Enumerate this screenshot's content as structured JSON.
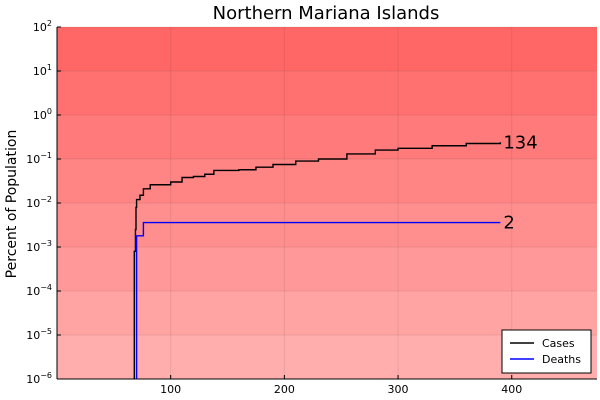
{
  "chart_data": {
    "type": "line",
    "title": "Northern Mariana Islands",
    "xlabel": "",
    "ylabel": "Percent of Population",
    "y_scale": "log",
    "xlim": [
      0,
      475
    ],
    "ylim": [
      1e-06,
      100
    ],
    "x_ticks": [
      100,
      200,
      300,
      400
    ],
    "x_tick_labels": [
      "100",
      "200",
      "300",
      "400"
    ],
    "y_ticks": [
      1e-06,
      1e-05,
      0.0001,
      0.001,
      0.01,
      0.1,
      1,
      10,
      100
    ],
    "y_tick_base": "10",
    "y_tick_exponents": [
      "−6",
      "−5",
      "−4",
      "−3",
      "−2",
      "−1",
      "0",
      "1",
      "2"
    ],
    "grid": true,
    "background": "red gradient bands by decade",
    "legend": {
      "placement": "bottom-right",
      "entries": [
        "Cases",
        "Deaths"
      ]
    },
    "series": [
      {
        "name": "Cases",
        "color": "#000000",
        "end_label": "134",
        "points": [
          [
            68,
            1e-06
          ],
          [
            68,
            0.0008
          ],
          [
            69,
            0.0025
          ],
          [
            69.5,
            0.008
          ],
          [
            70,
            0.012
          ],
          [
            73,
            0.015
          ],
          [
            76,
            0.021
          ],
          [
            82,
            0.026
          ],
          [
            100,
            0.03
          ],
          [
            110,
            0.038
          ],
          [
            120,
            0.04
          ],
          [
            130,
            0.045
          ],
          [
            138,
            0.055
          ],
          [
            160,
            0.057
          ],
          [
            175,
            0.065
          ],
          [
            190,
            0.075
          ],
          [
            210,
            0.09
          ],
          [
            230,
            0.1
          ],
          [
            255,
            0.13
          ],
          [
            280,
            0.16
          ],
          [
            300,
            0.175
          ],
          [
            330,
            0.2
          ],
          [
            360,
            0.225
          ],
          [
            390,
            0.24
          ]
        ]
      },
      {
        "name": "Deaths",
        "color": "#0000ff",
        "end_label": "2",
        "points": [
          [
            70,
            1e-06
          ],
          [
            70,
            0.0018
          ],
          [
            76,
            0.0018
          ],
          [
            76,
            0.0036
          ],
          [
            390,
            0.0036
          ]
        ]
      }
    ]
  }
}
